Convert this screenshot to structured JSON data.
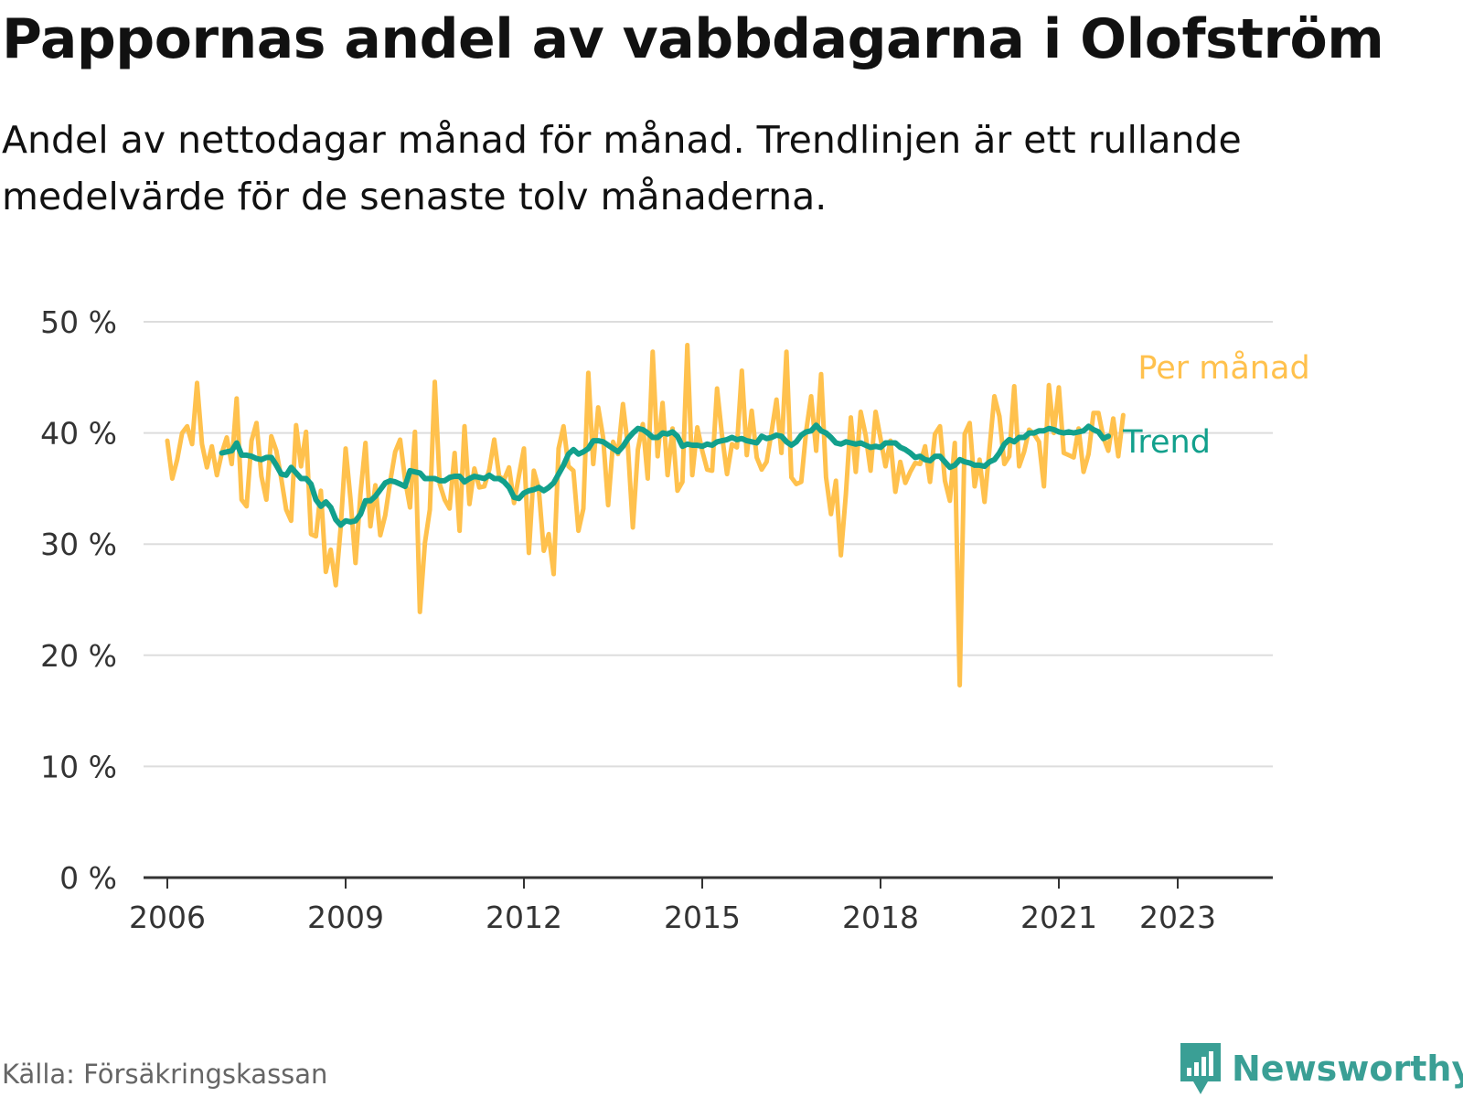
{
  "title": "Pappornas andel av vabbdagarna i Olofström",
  "subtitle": "Andel av nettodagar månad för månad. Trendlinjen är ett rullande medelvärde för de senaste tolv månaderna.",
  "source": "Källa: Försäkringskassan",
  "brand": "Newsworthy",
  "colors": {
    "monthly": "#ffc14d",
    "trend": "#12a08c",
    "grid": "#dddddd",
    "axis": "#333333",
    "tick_text": "#333333",
    "brand": "#3a9f95"
  },
  "chart_data": {
    "type": "line",
    "title": "Pappornas andel av vabbdagarna i Olofström",
    "xlabel": "",
    "ylabel": "",
    "ylim": [
      0,
      50
    ],
    "xlim": [
      2005.6,
      2024.6
    ],
    "y_ticks": [
      0,
      10,
      20,
      30,
      40,
      50
    ],
    "y_tick_labels": [
      "0 %",
      "10 %",
      "20 %",
      "30 %",
      "40 %",
      "50 %"
    ],
    "x_ticks": [
      2006,
      2009,
      2012,
      2015,
      2018,
      2021,
      2023
    ],
    "x_tick_labels": [
      "2006",
      "2009",
      "2012",
      "2015",
      "2018",
      "2021",
      "2023"
    ],
    "grid": true,
    "series": [
      {
        "name": "Per månad",
        "x_start": 2006.0,
        "step": 0.08333,
        "values": [
          39.3,
          35.9,
          37.6,
          40.0,
          40.6,
          39.0,
          44.5,
          39.0,
          36.9,
          38.8,
          36.2,
          38.2,
          39.6,
          37.2,
          43.1,
          34.0,
          33.4,
          39.3,
          40.9,
          36.1,
          34.0,
          39.7,
          38.4,
          35.9,
          33.1,
          32.1,
          40.7,
          37.0,
          40.1,
          30.9,
          30.7,
          34.8,
          27.5,
          29.5,
          26.3,
          31.5,
          38.6,
          34.0,
          28.3,
          34.5,
          39.1,
          31.6,
          35.3,
          30.8,
          32.6,
          35.6,
          38.3,
          39.4,
          35.8,
          33.3,
          40.1,
          23.9,
          30.1,
          33.1,
          44.6,
          35.4,
          34.0,
          33.2,
          38.2,
          31.2,
          40.6,
          33.6,
          36.8,
          35.1,
          35.2,
          36.7,
          39.4,
          36.1,
          35.8,
          36.9,
          33.7,
          36.2,
          38.6,
          29.2,
          36.6,
          35.0,
          29.4,
          30.9,
          27.3,
          38.6,
          40.6,
          37.0,
          36.6,
          31.2,
          33.2,
          45.4,
          37.2,
          42.3,
          39.6,
          33.5,
          39.2,
          38.1,
          42.6,
          38.8,
          31.5,
          38.5,
          40.8,
          35.9,
          47.3,
          37.9,
          42.7,
          36.2,
          40.4,
          34.8,
          35.6,
          47.9,
          36.2,
          40.5,
          38.4,
          36.7,
          36.6,
          44.0,
          39.8,
          36.3,
          39.0,
          38.7,
          45.6,
          38.0,
          42.0,
          37.8,
          36.7,
          37.4,
          40.1,
          43.0,
          38.2,
          47.3,
          36.0,
          35.4,
          35.6,
          40.2,
          43.3,
          38.4,
          45.3,
          36.0,
          32.7,
          35.7,
          29.0,
          34.5,
          41.4,
          36.5,
          41.9,
          39.8,
          36.6,
          41.9,
          39.5,
          37.0,
          39.3,
          34.7,
          37.4,
          35.5,
          36.5,
          37.3,
          37.2,
          38.8,
          35.6,
          39.9,
          40.6,
          35.7,
          33.9,
          39.1,
          17.3,
          39.9,
          40.9,
          35.2,
          37.6,
          33.8,
          38.5,
          43.3,
          41.5,
          37.2,
          37.9,
          44.2,
          37.0,
          38.3,
          40.3,
          39.9,
          39.2,
          35.2,
          44.3,
          40.0,
          44.1,
          38.2,
          38.0,
          37.8,
          40.4,
          36.5,
          38.1,
          41.8,
          41.8,
          39.6,
          38.4,
          41.3,
          37.9,
          41.6
        ]
      },
      {
        "name": "Trend",
        "x_start": 2006.917,
        "step": 0.08333,
        "values": [
          38.2,
          38.3,
          38.4,
          39.1,
          38.0,
          38.0,
          37.9,
          37.7,
          37.6,
          37.8,
          37.8,
          37.1,
          36.3,
          36.2,
          36.9,
          36.4,
          35.9,
          35.9,
          35.4,
          34.0,
          33.4,
          33.8,
          33.3,
          32.2,
          31.7,
          32.1,
          32.0,
          32.1,
          32.7,
          33.9,
          33.9,
          34.3,
          34.9,
          35.5,
          35.7,
          35.6,
          35.4,
          35.2,
          36.6,
          36.5,
          36.4,
          35.9,
          35.9,
          35.9,
          35.7,
          35.7,
          36.0,
          36.1,
          36.1,
          35.6,
          35.9,
          36.1,
          36.0,
          35.9,
          36.2,
          35.9,
          35.9,
          35.6,
          35.1,
          34.2,
          34.1,
          34.6,
          34.8,
          34.9,
          35.1,
          34.8,
          35.1,
          35.5,
          36.3,
          37.1,
          38.1,
          38.5,
          38.1,
          38.3,
          38.6,
          39.3,
          39.3,
          39.2,
          38.9,
          38.6,
          38.3,
          38.8,
          39.5,
          40.0,
          40.4,
          40.3,
          40.0,
          39.6,
          39.6,
          40.0,
          39.9,
          40.1,
          39.7,
          38.8,
          39.0,
          38.9,
          38.9,
          38.8,
          39.0,
          38.9,
          39.2,
          39.3,
          39.4,
          39.6,
          39.4,
          39.5,
          39.3,
          39.2,
          39.1,
          39.7,
          39.5,
          39.6,
          39.8,
          39.7,
          39.2,
          38.9,
          39.2,
          39.8,
          40.1,
          40.2,
          40.7,
          40.2,
          40.0,
          39.6,
          39.1,
          39.0,
          39.2,
          39.1,
          39.0,
          39.1,
          38.9,
          38.7,
          38.8,
          38.7,
          39.1,
          39.1,
          39.1,
          38.7,
          38.5,
          38.2,
          37.8,
          37.9,
          37.6,
          37.5,
          37.9,
          37.9,
          37.4,
          36.9,
          37.1,
          37.6,
          37.4,
          37.3,
          37.1,
          37.1,
          37.0,
          37.4,
          37.6,
          38.2,
          39.0,
          39.4,
          39.2,
          39.6,
          39.6,
          40.0,
          40.0,
          40.2,
          40.2,
          40.4,
          40.3,
          40.1,
          40.0,
          40.1,
          40.0,
          40.1,
          40.2,
          40.6,
          40.3,
          40.1,
          39.5,
          39.7
        ]
      }
    ],
    "annotations": [
      {
        "label": "Per månad",
        "series": "Per månad"
      },
      {
        "label": "Trend",
        "series": "Trend"
      }
    ]
  }
}
